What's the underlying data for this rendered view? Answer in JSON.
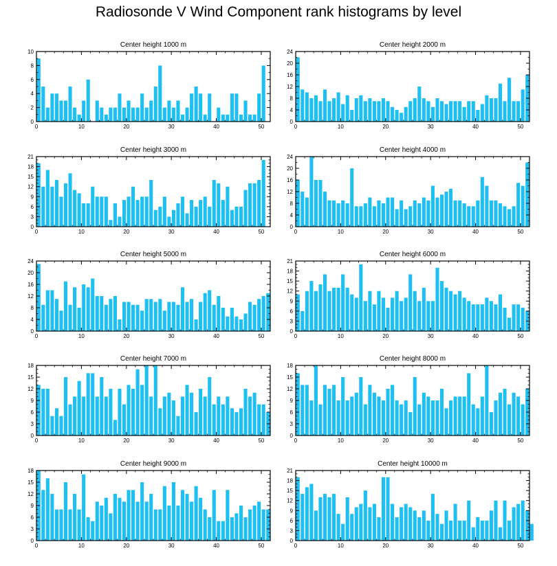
{
  "title": "Radiosonde V Wind Component rank histograms by level",
  "colors": {
    "bar": "#1ec0f2",
    "axis": "#000000",
    "background": "#ffffff"
  },
  "chart_data": [
    {
      "type": "bar",
      "title": "Center height 1000 m",
      "xlim": [
        0,
        52
      ],
      "ylim": [
        0,
        10
      ],
      "xticks": [
        0,
        10,
        20,
        30,
        40,
        50
      ],
      "yticks": [
        0,
        2,
        4,
        6,
        8,
        10
      ],
      "values": [
        9,
        5,
        2,
        4,
        4,
        3,
        3,
        5,
        2,
        1,
        3,
        6,
        0,
        3,
        2,
        1,
        2,
        2,
        4,
        2,
        3,
        2,
        2,
        4,
        2,
        3,
        5,
        8,
        2,
        3,
        2,
        3,
        1,
        2,
        4,
        5,
        4,
        1,
        4,
        0,
        2,
        1,
        1,
        4,
        4,
        1,
        3,
        1,
        1,
        4,
        8
      ]
    },
    {
      "type": "bar",
      "title": "Center height 2000 m",
      "xlim": [
        0,
        52
      ],
      "ylim": [
        0,
        24
      ],
      "xticks": [
        0,
        10,
        20,
        30,
        40,
        50
      ],
      "yticks": [
        0,
        4,
        8,
        12,
        16,
        20,
        24
      ],
      "values": [
        22,
        11,
        10,
        8,
        9,
        7,
        11,
        7,
        8,
        10,
        6,
        9,
        4,
        8,
        9,
        7,
        8,
        7,
        7,
        8,
        7,
        5,
        4,
        3,
        5,
        7,
        8,
        12,
        8,
        7,
        5,
        8,
        7,
        6,
        7,
        7,
        7,
        5,
        7,
        7,
        4,
        6,
        9,
        8,
        8,
        13,
        7,
        15,
        7,
        7,
        11,
        16
      ]
    },
    {
      "type": "bar",
      "title": "Center height 3000 m",
      "xlim": [
        0,
        52
      ],
      "ylim": [
        0,
        21
      ],
      "xticks": [
        0,
        10,
        20,
        30,
        40,
        50
      ],
      "yticks": [
        0,
        3,
        6,
        9,
        12,
        15,
        18,
        21
      ],
      "values": [
        19,
        12,
        17,
        12,
        14,
        9,
        13,
        16,
        11,
        10,
        7,
        7,
        12,
        9,
        9,
        9,
        2,
        7,
        3,
        8,
        9,
        12,
        8,
        9,
        9,
        14,
        5,
        6,
        9,
        3,
        5,
        7,
        9,
        4,
        8,
        6,
        8,
        9,
        6,
        14,
        13,
        8,
        12,
        5,
        6,
        6,
        11,
        13,
        13,
        14,
        20
      ]
    },
    {
      "type": "bar",
      "title": "Center height 4000 m",
      "xlim": [
        0,
        52
      ],
      "ylim": [
        0,
        24
      ],
      "xticks": [
        0,
        10,
        20,
        30,
        40,
        50
      ],
      "yticks": [
        0,
        4,
        8,
        12,
        16,
        20,
        24
      ],
      "values": [
        16,
        12,
        10,
        24,
        16,
        16,
        12,
        9,
        9,
        8,
        9,
        8,
        20,
        7,
        7,
        8,
        10,
        7,
        9,
        8,
        10,
        10,
        6,
        9,
        6,
        7,
        9,
        8,
        10,
        9,
        14,
        10,
        11,
        12,
        13,
        9,
        9,
        8,
        7,
        7,
        9,
        17,
        14,
        9,
        9,
        8,
        7,
        6,
        7,
        15,
        14,
        22
      ]
    },
    {
      "type": "bar",
      "title": "Center height 5000 m",
      "xlim": [
        0,
        52
      ],
      "ylim": [
        0,
        24
      ],
      "xticks": [
        0,
        10,
        20,
        30,
        40,
        50
      ],
      "yticks": [
        0,
        4,
        8,
        12,
        16,
        20,
        24
      ],
      "values": [
        23,
        9,
        14,
        14,
        11,
        7,
        17,
        9,
        15,
        8,
        16,
        15,
        18,
        12,
        12,
        9,
        11,
        12,
        4,
        10,
        10,
        9,
        9,
        7,
        11,
        11,
        10,
        11,
        7,
        10,
        10,
        9,
        15,
        10,
        11,
        4,
        10,
        13,
        14,
        9,
        12,
        8,
        5,
        8,
        5,
        4,
        6,
        10,
        9,
        11,
        12,
        13
      ]
    },
    {
      "type": "bar",
      "title": "Center height 6000 m",
      "xlim": [
        0,
        52
      ],
      "ylim": [
        0,
        21
      ],
      "xticks": [
        0,
        10,
        20,
        30,
        40,
        50
      ],
      "yticks": [
        0,
        3,
        6,
        9,
        12,
        15,
        18,
        21
      ],
      "values": [
        11,
        6,
        12,
        15,
        12,
        14,
        17,
        12,
        13,
        13,
        17,
        13,
        11,
        10,
        20,
        9,
        12,
        8,
        12,
        10,
        7,
        10,
        12,
        9,
        10,
        17,
        12,
        9,
        13,
        9,
        9,
        19,
        15,
        13,
        12,
        11,
        12,
        10,
        9,
        8,
        8,
        8,
        10,
        9,
        8,
        11,
        7,
        4,
        8,
        8,
        7,
        6
      ]
    },
    {
      "type": "bar",
      "title": "Center height 7000 m",
      "xlim": [
        0,
        52
      ],
      "ylim": [
        0,
        18
      ],
      "xticks": [
        0,
        10,
        20,
        30,
        40,
        50
      ],
      "yticks": [
        0,
        3,
        6,
        9,
        12,
        15,
        18
      ],
      "values": [
        13,
        12,
        12,
        5,
        7,
        5,
        15,
        8,
        10,
        14,
        10,
        16,
        16,
        10,
        15,
        10,
        12,
        4,
        12,
        8,
        13,
        12,
        17,
        13,
        18,
        10,
        18,
        7,
        10,
        11,
        9,
        5,
        10,
        13,
        11,
        6,
        12,
        10,
        15,
        8,
        10,
        8,
        10,
        7,
        6,
        7,
        12,
        10,
        11,
        8,
        8,
        6
      ]
    },
    {
      "type": "bar",
      "title": "Center height 8000 m",
      "xlim": [
        0,
        52
      ],
      "ylim": [
        0,
        18
      ],
      "xticks": [
        0,
        10,
        20,
        30,
        40,
        50
      ],
      "yticks": [
        0,
        3,
        6,
        9,
        12,
        15,
        18
      ],
      "values": [
        16,
        13,
        13,
        9,
        18,
        8,
        13,
        12,
        13,
        9,
        15,
        9,
        10,
        11,
        15,
        8,
        13,
        11,
        10,
        9,
        12,
        13,
        9,
        8,
        9,
        6,
        15,
        8,
        11,
        10,
        9,
        9,
        12,
        7,
        9,
        10,
        10,
        10,
        16,
        8,
        7,
        10,
        18,
        6,
        9,
        11,
        12,
        8,
        11,
        10,
        8,
        12
      ]
    },
    {
      "type": "bar",
      "title": "Center height 9000 m",
      "xlim": [
        0,
        52
      ],
      "ylim": [
        0,
        18
      ],
      "xticks": [
        0,
        10,
        20,
        30,
        40,
        50
      ],
      "yticks": [
        0,
        3,
        6,
        9,
        12,
        15,
        18
      ],
      "values": [
        18,
        13,
        16,
        12,
        8,
        8,
        15,
        8,
        12,
        8,
        17,
        6,
        5,
        10,
        9,
        11,
        7,
        12,
        11,
        10,
        13,
        13,
        10,
        15,
        10,
        12,
        8,
        8,
        14,
        9,
        15,
        9,
        13,
        12,
        10,
        14,
        11,
        8,
        6,
        13,
        5,
        5,
        13,
        6,
        7,
        9,
        6,
        8,
        9,
        10,
        8,
        8
      ]
    },
    {
      "type": "bar",
      "title": "Center height 10000 m",
      "xlim": [
        0,
        52
      ],
      "ylim": [
        0,
        21
      ],
      "xticks": [
        0,
        10,
        20,
        30,
        40,
        50
      ],
      "yticks": [
        0,
        3,
        6,
        9,
        12,
        15,
        18,
        21
      ],
      "values": [
        19,
        14,
        16,
        17,
        9,
        13,
        14,
        13,
        14,
        8,
        5,
        13,
        8,
        10,
        11,
        15,
        10,
        11,
        7,
        19,
        19,
        11,
        7,
        10,
        11,
        10,
        9,
        7,
        9,
        6,
        14,
        8,
        5,
        9,
        6,
        11,
        6,
        6,
        12,
        4,
        7,
        6,
        6,
        9,
        12,
        4,
        12,
        6,
        10,
        11,
        12,
        9,
        5
      ]
    }
  ]
}
